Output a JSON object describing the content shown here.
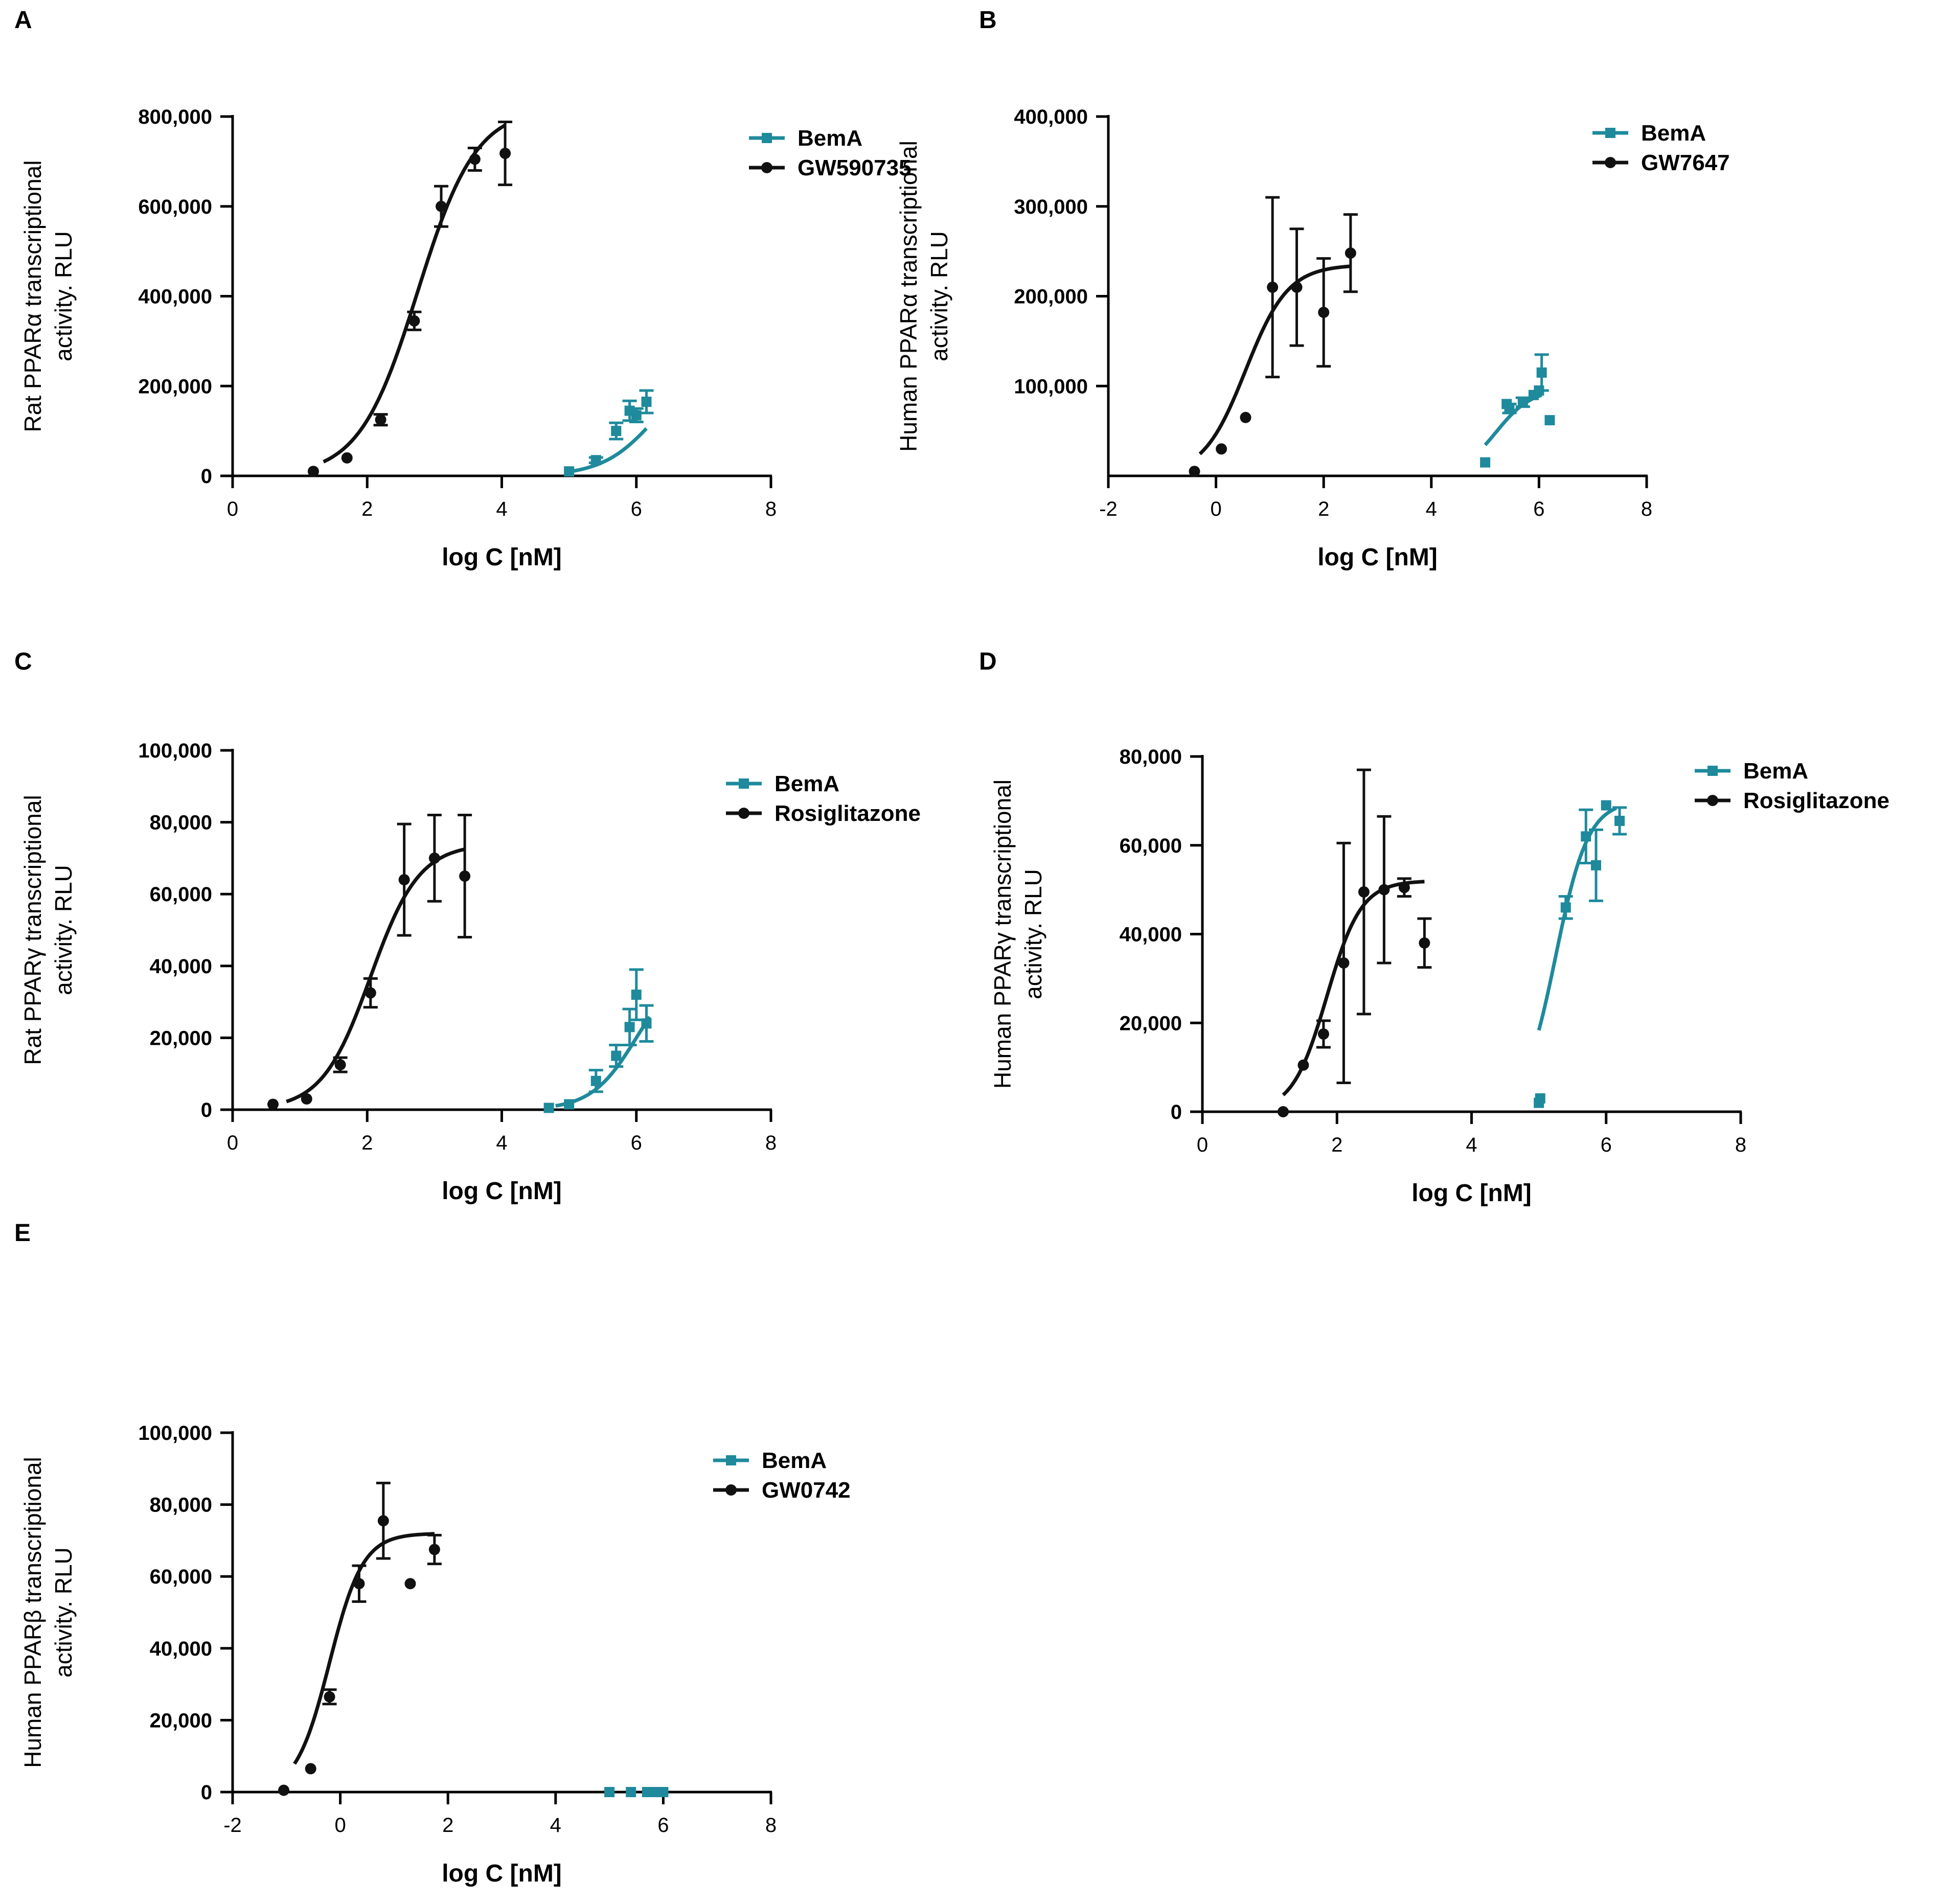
{
  "colors": {
    "teal": "#1e8a9c",
    "black": "#111111"
  },
  "axis_title_x": "log C [nM]",
  "chart_data": [
    {
      "id": "A",
      "panel_label": "A",
      "type": "scatter",
      "ylabel_line1": "Rat PPARα transcriptional",
      "ylabel_line2": "activity. RLU",
      "xlabel": "log C [nM]",
      "xlim": [
        0,
        8
      ],
      "ylim": [
        0,
        800000
      ],
      "xticks": [
        0,
        2,
        4,
        6,
        8
      ],
      "xtick_labels": [
        "0",
        "2",
        "4",
        "6",
        "8"
      ],
      "yticks": [
        0,
        200000,
        400000,
        600000,
        800000
      ],
      "ytick_labels": [
        "0",
        "200,000",
        "400,000",
        "600,000",
        "800,000"
      ],
      "legend": [
        "BemA",
        "GW590735"
      ],
      "series": [
        {
          "name": "BemA",
          "marker": "square",
          "color": "teal",
          "x": [
            5.0,
            5.4,
            5.7,
            5.9,
            6.0,
            6.15
          ],
          "y": [
            10000,
            35000,
            100000,
            145000,
            135000,
            165000
          ],
          "err": [
            0,
            6000,
            18000,
            22000,
            15000,
            25000
          ],
          "fit": {
            "bottom": 0,
            "top": 260000,
            "logec50": 6.3,
            "hill": 1.1,
            "xmin": 5.0,
            "xmax": 6.15
          }
        },
        {
          "name": "GW590735",
          "marker": "circle",
          "color": "black",
          "x": [
            1.2,
            1.7,
            2.2,
            2.7,
            3.1,
            3.6,
            4.05
          ],
          "y": [
            10000,
            40000,
            125000,
            345000,
            600000,
            705000,
            718000
          ],
          "err": [
            0,
            0,
            12000,
            20000,
            45000,
            25000,
            70000
          ],
          "fit": {
            "bottom": 0,
            "top": 820000,
            "logec50": 2.75,
            "hill": 1.0,
            "xmin": 1.35,
            "xmax": 4.05
          }
        }
      ]
    },
    {
      "id": "B",
      "panel_label": "B",
      "type": "scatter",
      "ylabel_line1": "Human PPARα transcriptional",
      "ylabel_line2": "activity. RLU",
      "xlabel": "log C [nM]",
      "xlim": [
        -2,
        8
      ],
      "ylim": [
        0,
        400000
      ],
      "xticks": [
        -2,
        0,
        2,
        4,
        6,
        8
      ],
      "xtick_labels": [
        "-2",
        "0",
        "2",
        "4",
        "6",
        "8"
      ],
      "yticks": [
        100000,
        200000,
        300000,
        400000
      ],
      "ytick_labels": [
        "100,000",
        "200,000",
        "300,000",
        "400,000"
      ],
      "legend": [
        "BemA",
        "GW7647"
      ],
      "series": [
        {
          "name": "BemA",
          "marker": "square",
          "color": "teal",
          "x": [
            5.0,
            5.4,
            5.45,
            5.7,
            5.9,
            6.0,
            6.05,
            6.2
          ],
          "y": [
            15000,
            80000,
            75000,
            82000,
            90000,
            95000,
            115000,
            62000
          ],
          "err": [
            0,
            0,
            5000,
            5000,
            0,
            0,
            20000,
            0
          ],
          "fit": {
            "bottom": 0,
            "top": 97000,
            "logec50": 5.2,
            "hill": 1.3,
            "xmin": 5.0,
            "xmax": 6.05
          }
        },
        {
          "name": "GW7647",
          "marker": "circle",
          "color": "black",
          "x": [
            -0.4,
            0.1,
            0.55,
            1.05,
            1.5,
            2.0,
            2.5
          ],
          "y": [
            5000,
            30000,
            65000,
            210000,
            210000,
            182000,
            248000
          ],
          "err": [
            0,
            0,
            0,
            100000,
            65000,
            60000,
            43000
          ],
          "fit": {
            "bottom": 0,
            "top": 235000,
            "logec50": 0.55,
            "hill": 1.1,
            "xmin": -0.3,
            "xmax": 2.5
          }
        }
      ]
    },
    {
      "id": "C",
      "panel_label": "C",
      "type": "scatter",
      "ylabel_line1": "Rat PPARγ transcriptional",
      "ylabel_line2": "activity. RLU",
      "xlabel": "log C [nM]",
      "xlim": [
        0,
        8
      ],
      "ylim": [
        0,
        100000
      ],
      "xticks": [
        0,
        2,
        4,
        6,
        8
      ],
      "xtick_labels": [
        "0",
        "2",
        "4",
        "6",
        "8"
      ],
      "yticks": [
        0,
        20000,
        40000,
        60000,
        80000,
        100000
      ],
      "ytick_labels": [
        "0",
        "20,000",
        "40,000",
        "60,000",
        "80,000",
        "100,000"
      ],
      "legend": [
        "BemA",
        "Rosiglitazone"
      ],
      "series": [
        {
          "name": "BemA",
          "marker": "square",
          "color": "teal",
          "x": [
            4.7,
            5.0,
            5.4,
            5.7,
            5.9,
            6.0,
            6.15
          ],
          "y": [
            500,
            1500,
            8000,
            15000,
            23000,
            32000,
            24000
          ],
          "err": [
            0,
            0,
            3000,
            3000,
            5000,
            7000,
            5000
          ],
          "fit": {
            "bottom": 0,
            "top": 40000,
            "logec50": 6.0,
            "hill": 1.3,
            "xmin": 4.8,
            "xmax": 6.2
          }
        },
        {
          "name": "Rosiglitazone",
          "marker": "circle",
          "color": "black",
          "x": [
            0.6,
            1.1,
            1.6,
            2.05,
            2.55,
            3.0,
            3.45
          ],
          "y": [
            1500,
            3000,
            12500,
            32500,
            64000,
            70000,
            65000
          ],
          "err": [
            0,
            0,
            2000,
            4000,
            15500,
            12000,
            17000
          ],
          "fit": {
            "bottom": 0,
            "top": 74000,
            "logec50": 2.05,
            "hill": 1.2,
            "xmin": 0.8,
            "xmax": 3.45
          }
        }
      ]
    },
    {
      "id": "D",
      "panel_label": "D",
      "type": "scatter",
      "ylabel_line1": "Human PPARγ transcriptional",
      "ylabel_line2": "activity. RLU",
      "xlabel": "log C [nM]",
      "xlim": [
        0,
        8
      ],
      "ylim": [
        0,
        80000
      ],
      "xticks": [
        0,
        2,
        4,
        6,
        8
      ],
      "xtick_labels": [
        "0",
        "2",
        "4",
        "6",
        "8"
      ],
      "yticks": [
        0,
        20000,
        40000,
        60000,
        80000
      ],
      "ytick_labels": [
        "0",
        "20,000",
        "40,000",
        "60,000",
        "80,000"
      ],
      "legend": [
        "BemA",
        "Rosiglitazone"
      ],
      "series": [
        {
          "name": "BemA",
          "marker": "square",
          "color": "teal",
          "x": [
            5.0,
            5.02,
            5.4,
            5.7,
            5.85,
            6.0,
            6.2
          ],
          "y": [
            2000,
            3000,
            46000,
            62000,
            55500,
            69000,
            65500
          ],
          "err": [
            0,
            0,
            2500,
            6000,
            8000,
            0,
            3000
          ],
          "fit": {
            "bottom": 0,
            "top": 70000,
            "logec50": 5.25,
            "hill": 1.8,
            "xmin": 5.0,
            "xmax": 6.15
          }
        },
        {
          "name": "Rosiglitazone",
          "marker": "circle",
          "color": "black",
          "x": [
            1.2,
            1.5,
            1.8,
            2.1,
            2.4,
            2.7,
            3.0,
            3.3
          ],
          "y": [
            0,
            10500,
            17500,
            33500,
            49500,
            50000,
            50500,
            38000
          ],
          "err": [
            0,
            0,
            3000,
            27000,
            27500,
            16500,
            2000,
            5500
          ],
          "fit": {
            "bottom": 0,
            "top": 52000,
            "logec50": 1.85,
            "hill": 1.7,
            "xmin": 1.2,
            "xmax": 3.3
          }
        }
      ]
    },
    {
      "id": "E",
      "panel_label": "E",
      "type": "scatter",
      "ylabel_line1": "Human PPARβ transcriptional",
      "ylabel_line2": "activity. RLU",
      "xlabel": "log C [nM]",
      "xlim": [
        -2,
        8
      ],
      "ylim": [
        0,
        100000
      ],
      "xticks": [
        -2,
        0,
        2,
        4,
        6,
        8
      ],
      "xtick_labels": [
        "-2",
        "0",
        "2",
        "4",
        "6",
        "8"
      ],
      "yticks": [
        0,
        20000,
        40000,
        60000,
        80000,
        100000
      ],
      "ytick_labels": [
        "0",
        "20,000",
        "40,000",
        "60,000",
        "80,000",
        "100,000"
      ],
      "legend": [
        "BemA",
        "GW0742"
      ],
      "series": [
        {
          "name": "BemA",
          "marker": "square",
          "color": "teal",
          "x": [
            5.0,
            5.4,
            5.7,
            5.85,
            6.0
          ],
          "y": [
            0,
            0,
            0,
            0,
            0
          ],
          "err": [
            0,
            0,
            0,
            0,
            0
          ],
          "fit": null
        },
        {
          "name": "GW0742",
          "marker": "circle",
          "color": "black",
          "x": [
            -1.05,
            -0.55,
            -0.2,
            0.35,
            0.8,
            1.3,
            1.75
          ],
          "y": [
            500,
            6500,
            26500,
            58000,
            75500,
            58000,
            67500
          ],
          "err": [
            0,
            0,
            2000,
            5000,
            10500,
            0,
            4000
          ],
          "fit": {
            "bottom": 0,
            "top": 72000,
            "logec50": -0.2,
            "hill": 1.4,
            "xmin": -0.85,
            "xmax": 1.75
          }
        }
      ]
    }
  ]
}
